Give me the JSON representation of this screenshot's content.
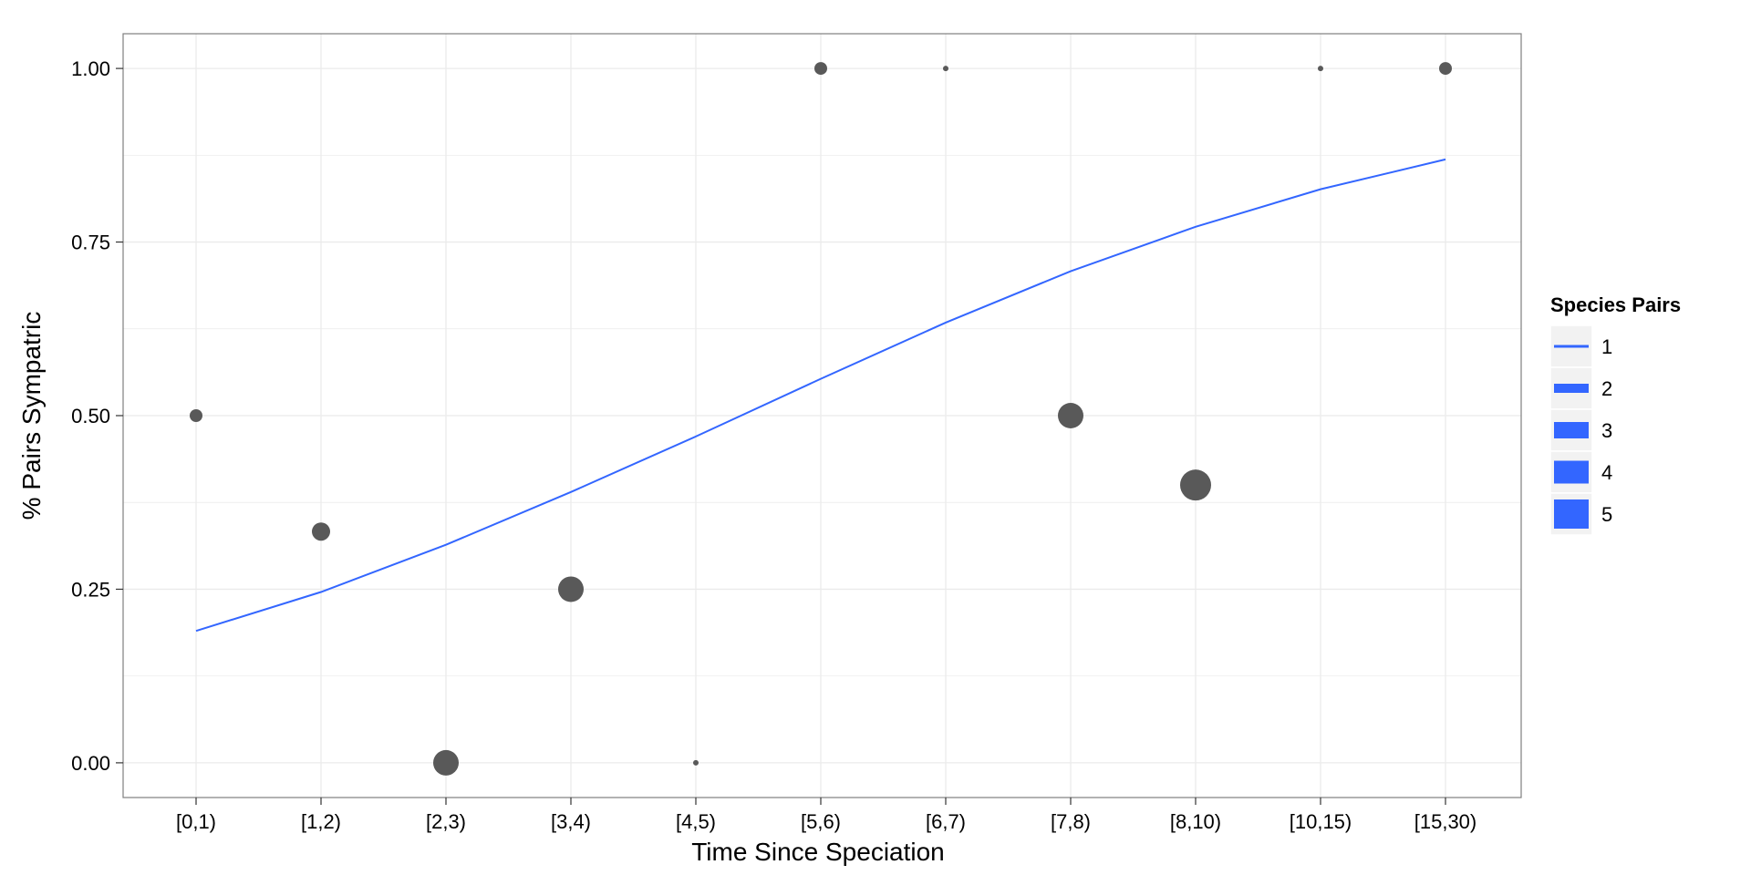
{
  "chart_data": {
    "type": "scatter",
    "xlabel": "Time Since Speciation",
    "ylabel": "% Pairs Sympatric",
    "categories": [
      "[0,1)",
      "[1,2)",
      "[2,3)",
      "[3,4)",
      "[4,5)",
      "[5,6)",
      "[6,7)",
      "[7,8)",
      "[8,10)",
      "[10,15)",
      "[15,30)"
    ],
    "y_ticks": [
      "0.00",
      "0.25",
      "0.50",
      "0.75",
      "1.00"
    ],
    "ylim": [
      -0.05,
      1.05
    ],
    "grid": true,
    "points": [
      {
        "x": "[0,1)",
        "y": 0.5,
        "size": 2
      },
      {
        "x": "[1,2)",
        "y": 0.333,
        "size": 3
      },
      {
        "x": "[2,3)",
        "y": 0.0,
        "size": 4
      },
      {
        "x": "[3,4)",
        "y": 0.25,
        "size": 4
      },
      {
        "x": "[4,5)",
        "y": 0.0,
        "size": 1
      },
      {
        "x": "[5,6)",
        "y": 1.0,
        "size": 2
      },
      {
        "x": "[6,7)",
        "y": 1.0,
        "size": 1
      },
      {
        "x": "[7,8)",
        "y": 0.5,
        "size": 4
      },
      {
        "x": "[8,10)",
        "y": 0.4,
        "size": 5
      },
      {
        "x": "[10,15)",
        "y": 1.0,
        "size": 1
      },
      {
        "x": "[15,30)",
        "y": 1.0,
        "size": 2
      }
    ],
    "trend_line": [
      0.19,
      0.246,
      0.314,
      0.39,
      0.47,
      0.553,
      0.634,
      0.708,
      0.772,
      0.826,
      0.869
    ],
    "legend": {
      "title": "Species Pairs",
      "placement": "right",
      "entries": [
        "1",
        "2",
        "3",
        "4",
        "5"
      ]
    },
    "colors": {
      "points": "#595959",
      "line": "#3366ff",
      "grid": "#ebebeb",
      "border": "#7f7f7f"
    }
  }
}
